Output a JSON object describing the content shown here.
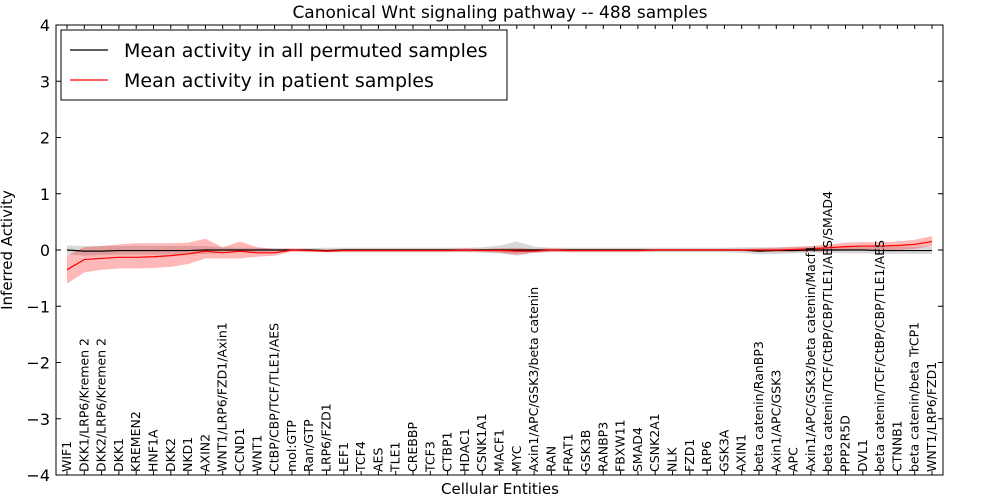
{
  "chart_data": {
    "type": "line",
    "title": "Canonical Wnt signaling pathway -- 488 samples",
    "xlabel": "Cellular Entities",
    "ylabel": "Inferred Activity",
    "ylim": [
      -4,
      4
    ],
    "yticks": [
      -4,
      -3,
      -2,
      -1,
      0,
      1,
      2,
      3,
      4
    ],
    "grid": false,
    "legend_position": "top-left",
    "categories": [
      "WIF1",
      "DKK1/LRP6/Kremen 2",
      "DKK2/LRP6/Kremen 2",
      "DKK1",
      "KREMEN2",
      "HNF1A",
      "DKK2",
      "NKD1",
      "AXIN2",
      "WNT1/LRP6/FZD1/Axin1",
      "CCND1",
      "WNT1",
      "CtBP/CBP/TCF/TLE1/AES",
      "mol:GTP",
      "Ran/GTP",
      "LRP6/FZD1",
      "LEF1",
      "TCF4",
      "AES",
      "TLE1",
      "CREBBP",
      "TCF3",
      "CTBP1",
      "HDAC1",
      "CSNK1A1",
      "MACF1",
      "MYC",
      "Axin1/APC/GSK3/beta catenin",
      "RAN",
      "FRAT1",
      "GSK3B",
      "RANBP3",
      "FBXW11",
      "SMAD4",
      "CSNK2A1",
      "NLK",
      "FZD1",
      "LRP6",
      "GSK3A",
      "AXIN1",
      "beta catenin/RanBP3",
      "Axin1/APC/GSK3",
      "APC",
      "Axin1/APC/GSK3/beta catenin/Macf1",
      "beta catenin/TCF/CtBP/CBP/TLE1/AES/SMAD4",
      "PPP2R5D",
      "DVL1",
      "beta catenin/TCF/CtBP/CBP/TLE1/AES",
      "CTNNB1",
      "beta catenin/beta TrCP1",
      "WNT1/LRP6/FZD1"
    ],
    "series": [
      {
        "name": "Mean activity in all permuted samples",
        "color": "#000000",
        "values": [
          0,
          -0.02,
          -0.02,
          -0.01,
          -0.01,
          -0.01,
          -0.01,
          -0.01,
          0,
          0,
          0,
          0,
          0,
          0,
          0,
          -0.01,
          0,
          0,
          0,
          0,
          0,
          0,
          0,
          0,
          0,
          0,
          0,
          0,
          0,
          0,
          0,
          0,
          0,
          0,
          0,
          0,
          0,
          0,
          0,
          0,
          -0.02,
          -0.01,
          -0.01,
          0,
          0,
          0,
          0,
          -0.01,
          -0.01,
          -0.01,
          -0.01
        ],
        "band_lower": [
          -0.08,
          -0.1,
          -0.09,
          -0.08,
          -0.08,
          -0.08,
          -0.08,
          -0.08,
          -0.07,
          -0.05,
          -0.04,
          -0.04,
          -0.03,
          -0.02,
          -0.03,
          -0.04,
          -0.04,
          -0.04,
          -0.04,
          -0.04,
          -0.04,
          -0.04,
          -0.04,
          -0.04,
          -0.05,
          -0.06,
          -0.1,
          -0.05,
          -0.04,
          -0.04,
          -0.04,
          -0.04,
          -0.04,
          -0.04,
          -0.04,
          -0.04,
          -0.04,
          -0.04,
          -0.04,
          -0.05,
          -0.08,
          -0.07,
          -0.06,
          -0.05,
          -0.05,
          -0.06,
          -0.06,
          -0.07,
          -0.07,
          -0.07,
          -0.07
        ],
        "band_upper": [
          0.08,
          0.07,
          0.07,
          0.07,
          0.07,
          0.07,
          0.07,
          0.07,
          0.07,
          0.05,
          0.04,
          0.04,
          0.03,
          0.02,
          0.03,
          0.04,
          0.04,
          0.04,
          0.04,
          0.04,
          0.04,
          0.04,
          0.04,
          0.04,
          0.05,
          0.08,
          0.15,
          0.06,
          0.04,
          0.04,
          0.04,
          0.04,
          0.04,
          0.04,
          0.04,
          0.04,
          0.04,
          0.04,
          0.04,
          0.05,
          0.05,
          0.05,
          0.05,
          0.06,
          0.06,
          0.06,
          0.06,
          0.06,
          0.06,
          0.06,
          0.06
        ]
      },
      {
        "name": "Mean activity in patient samples",
        "color": "#ff0000",
        "values": [
          -0.35,
          -0.17,
          -0.15,
          -0.13,
          -0.13,
          -0.12,
          -0.1,
          -0.07,
          -0.02,
          -0.05,
          -0.02,
          -0.05,
          -0.05,
          0,
          -0.01,
          -0.02,
          -0.01,
          -0.01,
          -0.01,
          -0.01,
          -0.01,
          -0.01,
          -0.01,
          0,
          -0.01,
          -0.01,
          -0.02,
          -0.02,
          0,
          -0.01,
          -0.01,
          -0.01,
          -0.01,
          -0.01,
          0,
          0,
          0,
          0,
          0,
          0,
          0,
          0,
          0.01,
          0.02,
          0.04,
          0.06,
          0.07,
          0.07,
          0.08,
          0.1,
          0.15
        ],
        "band_lower": [
          -0.6,
          -0.4,
          -0.35,
          -0.33,
          -0.33,
          -0.32,
          -0.3,
          -0.25,
          -0.15,
          -0.15,
          -0.15,
          -0.12,
          -0.1,
          -0.03,
          -0.03,
          -0.04,
          -0.03,
          -0.03,
          -0.03,
          -0.03,
          -0.03,
          -0.03,
          -0.03,
          -0.03,
          -0.03,
          -0.05,
          -0.08,
          -0.05,
          -0.03,
          -0.03,
          -0.03,
          -0.03,
          -0.03,
          -0.03,
          -0.02,
          -0.02,
          -0.02,
          -0.02,
          -0.02,
          -0.02,
          -0.03,
          -0.03,
          -0.03,
          -0.03,
          -0.02,
          -0.01,
          0,
          0,
          0,
          0.02,
          0.07
        ],
        "band_upper": [
          -0.1,
          0.05,
          0.07,
          0.1,
          0.12,
          0.12,
          0.12,
          0.13,
          0.2,
          0.05,
          0.15,
          0.05,
          0.02,
          0.03,
          0.02,
          0.01,
          0.02,
          0.02,
          0.02,
          0.02,
          0.02,
          0.02,
          0.02,
          0.03,
          0.02,
          0.03,
          0.04,
          0.02,
          0.03,
          0.02,
          0.02,
          0.02,
          0.02,
          0.02,
          0.02,
          0.02,
          0.02,
          0.02,
          0.02,
          0.02,
          0.03,
          0.04,
          0.06,
          0.07,
          0.1,
          0.13,
          0.14,
          0.14,
          0.15,
          0.18,
          0.25
        ]
      }
    ]
  }
}
